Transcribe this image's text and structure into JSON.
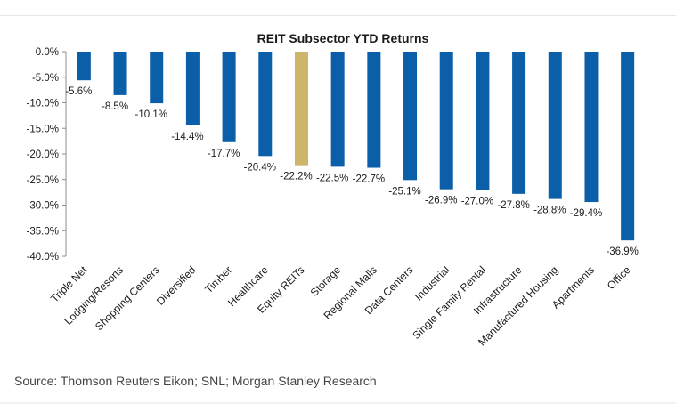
{
  "chart_data": {
    "type": "bar",
    "title": "REIT Subsector YTD Returns",
    "xlabel": "",
    "ylabel": "",
    "ylim": [
      -40,
      0
    ],
    "yticks": [
      0,
      -5,
      -10,
      -15,
      -20,
      -25,
      -30,
      -35,
      -40
    ],
    "ytick_labels": [
      "0.0%",
      "-5.0%",
      "-10.0%",
      "-15.0%",
      "-20.0%",
      "-25.0%",
      "-30.0%",
      "-35.0%",
      "-40.0%"
    ],
    "categories": [
      "Triple Net",
      "Lodging/Resorts",
      "Shopping Centers",
      "Diversified",
      "Timber",
      "Healthcare",
      "Equity REITs",
      "Storage",
      "Regional Malls",
      "Data Centers",
      "Industrial",
      "Single Family Rental",
      "Infrastructure",
      "Manufactured Housing",
      "Apartments",
      "Office"
    ],
    "values": [
      -5.6,
      -8.5,
      -10.1,
      -14.4,
      -17.7,
      -20.4,
      -22.2,
      -22.5,
      -22.7,
      -25.1,
      -26.9,
      -27.0,
      -27.8,
      -28.8,
      -29.4,
      -36.9
    ],
    "value_labels": [
      "-5.6%",
      "-8.5%",
      "-10.1%",
      "-14.4%",
      "-17.7%",
      "-20.4%",
      "-22.2%",
      "-22.5%",
      "-22.7%",
      "-25.1%",
      "-26.9%",
      "-27.0%",
      "-27.8%",
      "-28.8%",
      "-29.4%",
      "-36.9%"
    ],
    "highlight_category": "Equity REITs",
    "colors": {
      "bar": "#0b5ea8",
      "highlight": "#cdb56a",
      "axis": "#8c8c8c",
      "text": "#1a1a1a"
    },
    "grid": false,
    "legend": "none"
  },
  "footer": {
    "source": "Source: Thomson Reuters Eikon; SNL; Morgan Stanley Research"
  }
}
